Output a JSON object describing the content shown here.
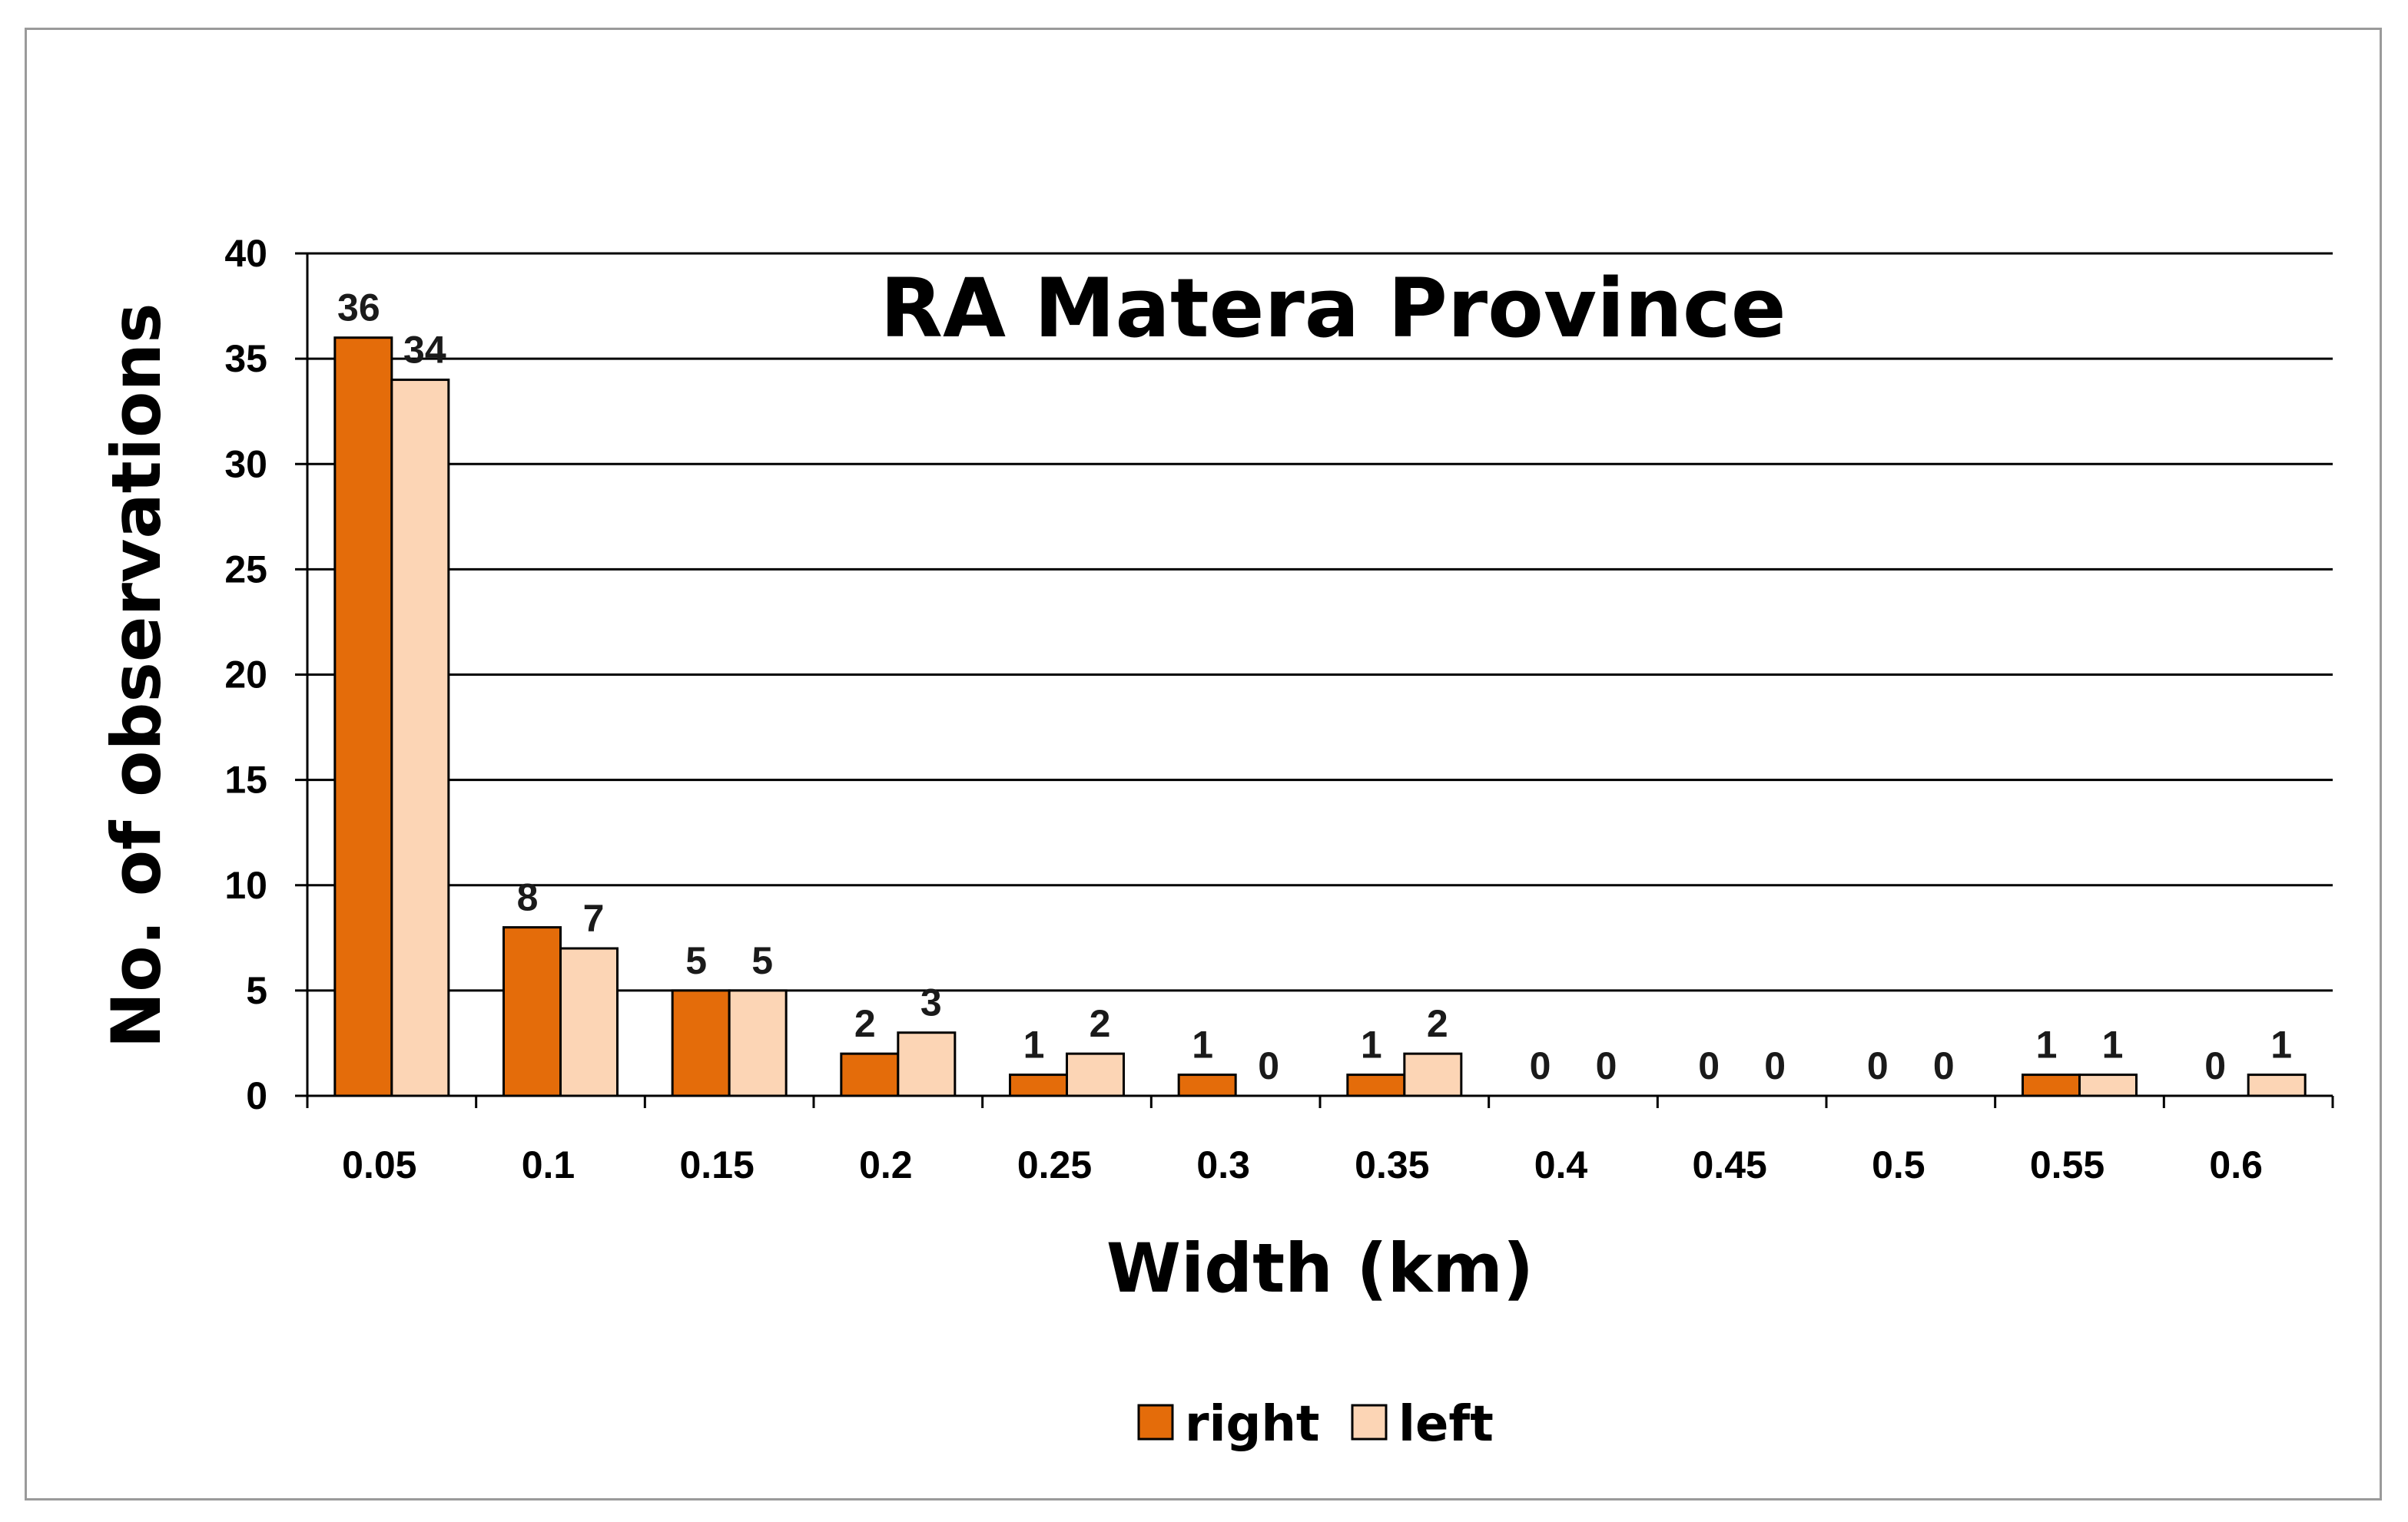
{
  "chart_data": {
    "type": "bar",
    "title": "RA Matera Province",
    "xlabel": "Width (km)",
    "ylabel": "No. of observations",
    "categories": [
      "0.05",
      "0.1",
      "0.15",
      "0.2",
      "0.25",
      "0.3",
      "0.35",
      "0.4",
      "0.45",
      "0.5",
      "0.55",
      "0.6"
    ],
    "series": [
      {
        "name": "right",
        "values": [
          36,
          8,
          5,
          2,
          1,
          1,
          1,
          0,
          0,
          0,
          1,
          0
        ],
        "color": "#E46C0A"
      },
      {
        "name": "left",
        "values": [
          34,
          7,
          5,
          3,
          2,
          0,
          2,
          0,
          0,
          0,
          1,
          1
        ],
        "color": "#FCD5B5"
      }
    ],
    "ylim": [
      0,
      40
    ],
    "yticks": [
      "0",
      "5",
      "10",
      "15",
      "20",
      "25",
      "30",
      "35",
      "40"
    ],
    "grid": true,
    "legend_position": "bottom",
    "data_labels": true
  }
}
